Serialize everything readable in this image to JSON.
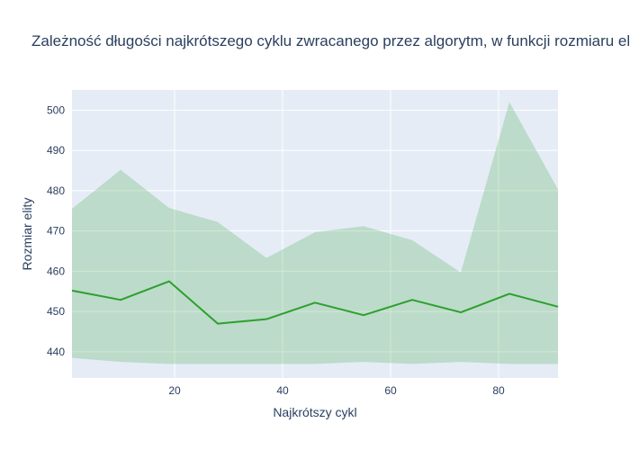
{
  "chart_data": {
    "type": "line",
    "title": "Zależność długości najkrótszego cyklu zwracanego przez algorytm,  w funkcji rozmiaru elity",
    "xlabel": "Najkrótszy cykl",
    "ylabel": "Rozmiar elity",
    "xlim": [
      1,
      91
    ],
    "ylim": [
      433.5,
      505
    ],
    "x_ticks": [
      20,
      40,
      60,
      80
    ],
    "y_ticks": [
      440,
      450,
      460,
      470,
      480,
      490,
      500
    ],
    "grid": true,
    "legend": "none",
    "x": [
      1,
      10,
      19,
      28,
      37,
      46,
      55,
      64,
      73,
      82,
      91
    ],
    "series": [
      {
        "role": "mean",
        "color": "#2ca02c",
        "values": [
          455.2,
          452.9,
          457.5,
          447.0,
          448.1,
          452.2,
          449.1,
          452.9,
          449.8,
          454.4,
          451.2
        ]
      },
      {
        "role": "upper",
        "color": "#2ca02c",
        "values": [
          475.5,
          485.2,
          475.7,
          472.2,
          463.3,
          469.7,
          471.2,
          467.7,
          459.7,
          502.0,
          480.3
        ]
      },
      {
        "role": "lower",
        "color": "#2ca02c",
        "values": [
          438.5,
          437.5,
          437.0,
          437.0,
          437.0,
          437.0,
          437.5,
          437.0,
          437.5,
          437.0,
          437.0
        ]
      }
    ],
    "band_color": "rgba(44,160,44,0.22)",
    "plot_bg": "#e5ecf6",
    "grid_color": "#ffffff"
  }
}
